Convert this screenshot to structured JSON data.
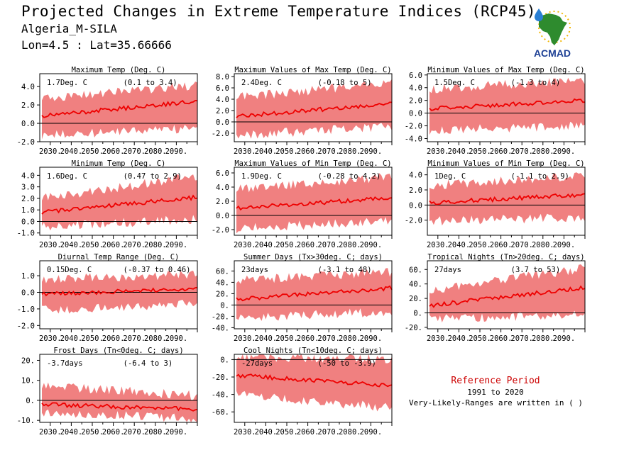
{
  "header": {
    "title": "Projected Changes in Extreme Temperature Indices (RCP45)",
    "location": "Algeria_M-SILA",
    "coords": "Lon=4.5 : Lat=35.66666"
  },
  "logo": {
    "text": "ACMAD",
    "colors": {
      "africa": "#2e8b2e",
      "text": "#1c3f94",
      "drop": "#2a7fd4",
      "sun": "#f2b705"
    }
  },
  "reference": {
    "label": "Reference Period",
    "years": "1991 to 2020",
    "note": "Very-Likely-Ranges are written in ( )"
  },
  "colors": {
    "band": "#f08080",
    "line": "#ee0000",
    "zero": "#000000"
  },
  "chart_data": [
    {
      "type": "area",
      "title": "Maximum Temp (Deg. C)",
      "value_label": "1.7Deg. C",
      "range_label": "(0.1 to 3.4)",
      "xlim": [
        2025,
        2100
      ],
      "ylim": [
        -2.0,
        5.4
      ],
      "yticks": [
        -2.0,
        0.0,
        2.0,
        4.0
      ],
      "ytick_labels": [
        "-2.0",
        "0.0",
        "2.0",
        "4.0"
      ],
      "xtick_labels": [
        "2030.",
        "2040.",
        "2050.",
        "2060.",
        "2070.",
        "2080.",
        "2090."
      ],
      "median_start": 0.8,
      "median_end": 2.4,
      "band_low": [
        -0.8,
        0.0
      ],
      "band_high": [
        2.2,
        3.6
      ]
    },
    {
      "type": "area",
      "title": "Maximum Values of Max Temp (Deg. C)",
      "value_label": "2.4Deg. C",
      "range_label": "(-0.18 to 5)",
      "xlim": [
        2025,
        2100
      ],
      "ylim": [
        -3.5,
        8.5
      ],
      "yticks": [
        -2.0,
        0.0,
        2.0,
        4.0,
        6.0,
        8.0
      ],
      "ytick_labels": [
        "-2.0",
        "0.0",
        "2.0",
        "4.0",
        "6.0",
        "8.0"
      ],
      "xtick_labels": [
        "2030.",
        "2040.",
        "2050.",
        "2060.",
        "2070.",
        "2080.",
        "2090."
      ],
      "median_start": 1.0,
      "median_end": 3.2,
      "band_low": [
        -1.5,
        0.0
      ],
      "band_high": [
        3.5,
        6.0
      ]
    },
    {
      "type": "area",
      "title": "Minimum Values of Max Temp (Deg. C)",
      "value_label": "1.5Deg. C",
      "range_label": "(-1.3 to 4)",
      "xlim": [
        2025,
        2100
      ],
      "ylim": [
        -4.5,
        6.2
      ],
      "yticks": [
        -4.0,
        -2.0,
        0.0,
        2.0,
        4.0,
        6.0
      ],
      "ytick_labels": [
        "-4.0",
        "-2.0",
        "0.0",
        "2.0",
        "4.0",
        "6.0"
      ],
      "xtick_labels": [
        "2030.",
        "2040.",
        "2050.",
        "2060.",
        "2070.",
        "2080.",
        "2090."
      ],
      "median_start": 0.7,
      "median_end": 2.0,
      "band_low": [
        -2.0,
        -1.2
      ],
      "band_high": [
        3.0,
        4.5
      ]
    },
    {
      "type": "area",
      "title": "Minimum Temp (Deg. C)",
      "value_label": "1.6Deg. C",
      "range_label": "(0.47 to 2.9)",
      "xlim": [
        2025,
        2100
      ],
      "ylim": [
        -1.2,
        4.7
      ],
      "yticks": [
        -1.0,
        0.0,
        1.0,
        2.0,
        3.0,
        4.0
      ],
      "ytick_labels": [
        "-1.0",
        "0.0",
        "1.0",
        "2.0",
        "3.0",
        "4.0"
      ],
      "xtick_labels": [
        "2030.",
        "2040.",
        "2050.",
        "2060.",
        "2070.",
        "2080.",
        "2090."
      ],
      "median_start": 0.8,
      "median_end": 2.1,
      "band_low": [
        0.0,
        0.6
      ],
      "band_high": [
        1.6,
        3.5
      ]
    },
    {
      "type": "area",
      "title": "Maximum Values of Min Temp (Deg. C)",
      "value_label": "1.9Deg. C",
      "range_label": "(-0.28 to 4.2)",
      "xlim": [
        2025,
        2100
      ],
      "ylim": [
        -2.8,
        6.8
      ],
      "yticks": [
        -2.0,
        0.0,
        2.0,
        4.0,
        6.0
      ],
      "ytick_labels": [
        "-2.0",
        "0.0",
        "2.0",
        "4.0",
        "6.0"
      ],
      "xtick_labels": [
        "2030.",
        "2040.",
        "2050.",
        "2060.",
        "2070.",
        "2080.",
        "2090."
      ],
      "median_start": 1.0,
      "median_end": 2.5,
      "band_low": [
        -1.2,
        0.0
      ],
      "band_high": [
        3.0,
        4.8
      ]
    },
    {
      "type": "area",
      "title": "Minimum Values of Min Temp (Deg. C)",
      "value_label": "1Deg. C",
      "range_label": "(-1.1 to 2.9)",
      "xlim": [
        2025,
        2100
      ],
      "ylim": [
        -4.0,
        5.0
      ],
      "yticks": [
        -2.0,
        0.0,
        2.0,
        4.0
      ],
      "ytick_labels": [
        "-2.0",
        "0.0",
        "2.0",
        "4.0"
      ],
      "xtick_labels": [
        "2030.",
        "2040.",
        "2050.",
        "2060.",
        "2070.",
        "2080.",
        "2090."
      ],
      "median_start": 0.3,
      "median_end": 1.4,
      "band_low": [
        -1.5,
        -1.0
      ],
      "band_high": [
        2.0,
        3.2
      ]
    },
    {
      "type": "area",
      "title": "Diurnal Temp Range (Deg. C)",
      "value_label": "0.15Deg. C",
      "range_label": "(-0.37 to 0.46)",
      "xlim": [
        2025,
        2100
      ],
      "ylim": [
        -2.2,
        1.9
      ],
      "yticks": [
        -2.0,
        -1.0,
        0.0,
        1.0
      ],
      "ytick_labels": [
        "-2.0",
        "-1.0",
        "0.0",
        "1.0"
      ],
      "xtick_labels": [
        "2030.",
        "2040.",
        "2050.",
        "2060.",
        "2070.",
        "2080.",
        "2090."
      ],
      "median_start": -0.1,
      "median_end": 0.2,
      "band_low": [
        -0.8,
        -0.4
      ],
      "band_high": [
        0.5,
        0.8
      ]
    },
    {
      "type": "area",
      "title": "Summer Days (Tx>30deg. C; days)",
      "value_label": "23days",
      "range_label": "(-3.1 to 48)",
      "xlim": [
        2025,
        2100
      ],
      "ylim": [
        -42,
        78
      ],
      "yticks": [
        -40,
        -20,
        0,
        20,
        40,
        60
      ],
      "ytick_labels": [
        "-40.",
        "-20.",
        "0.",
        "20.",
        "40.",
        "60."
      ],
      "xtick_labels": [
        "2030.",
        "2040.",
        "2050.",
        "2060.",
        "2070.",
        "2080.",
        "2090."
      ],
      "median_start": 10,
      "median_end": 30,
      "band_low": [
        -15,
        -3
      ],
      "band_high": [
        35,
        50
      ]
    },
    {
      "type": "area",
      "title": "Tropical Nights (Tn>20deg. C; days)",
      "value_label": "27days",
      "range_label": "(3.7 to 53)",
      "xlim": [
        2025,
        2100
      ],
      "ylim": [
        -22,
        72
      ],
      "yticks": [
        -20,
        0,
        20,
        40,
        60
      ],
      "ytick_labels": [
        "-20.",
        "0.",
        "20.",
        "40.",
        "60."
      ],
      "xtick_labels": [
        "2030.",
        "2040.",
        "2050.",
        "2060.",
        "2070.",
        "2080.",
        "2090."
      ],
      "median_start": 10,
      "median_end": 35,
      "band_low": [
        -2,
        5
      ],
      "band_high": [
        25,
        55
      ]
    },
    {
      "type": "area",
      "title": "Frost Days (Tn<0deg. C; days)",
      "value_label": "-3.7days",
      "range_label": "(-6.4 to 3)",
      "xlim": [
        2025,
        2100
      ],
      "ylim": [
        -11,
        23
      ],
      "yticks": [
        -10,
        0,
        10,
        20
      ],
      "ytick_labels": [
        "-10.",
        "0.",
        "10.",
        "20."
      ],
      "xtick_labels": [
        "2030.",
        "2040.",
        "2050.",
        "2060.",
        "2070.",
        "2080.",
        "2090."
      ],
      "median_start": -2,
      "median_end": -4.5,
      "band_low": [
        -3.5,
        -7
      ],
      "band_high": [
        5,
        0
      ]
    },
    {
      "type": "area",
      "title": "Cool Nights (Tn<10deg. C; days)",
      "value_label": "-27days",
      "range_label": "(-50 to -3.9)",
      "xlim": [
        2025,
        2100
      ],
      "ylim": [
        -72,
        6
      ],
      "yticks": [
        -60,
        -40,
        -20,
        0
      ],
      "ytick_labels": [
        "-60.",
        "-40.",
        "-20.",
        "0."
      ],
      "xtick_labels": [
        "2030.",
        "2040.",
        "2050.",
        "2060.",
        "2070.",
        "2080.",
        "2090."
      ],
      "median_start": -18,
      "median_end": -30,
      "band_low": [
        -35,
        -50
      ],
      "band_high": [
        -2,
        -5
      ]
    }
  ]
}
